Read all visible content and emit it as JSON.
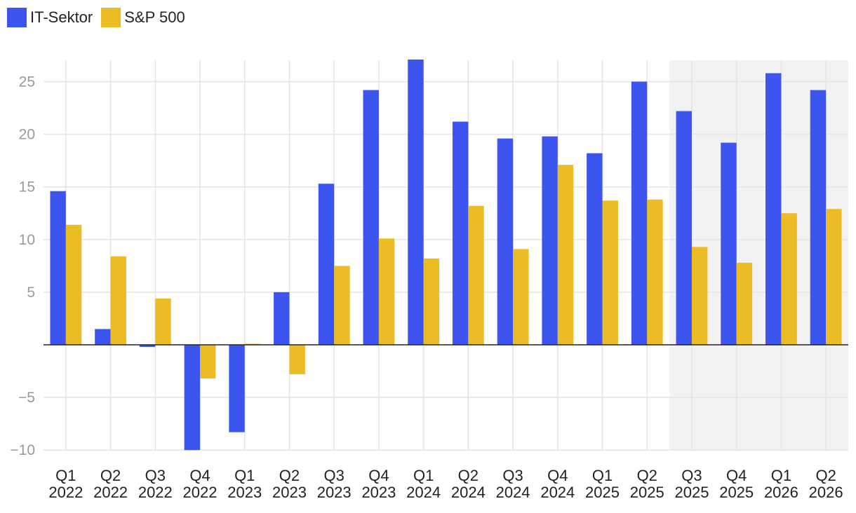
{
  "colors": {
    "it": "#3b55ee",
    "sp": "#ebbc24",
    "grid": "#e4e4e4",
    "forecast_bg": "#f2f2f2",
    "zero_line": "#222222"
  },
  "chart_data": {
    "type": "bar",
    "title": "",
    "xlabel": "",
    "ylabel": "",
    "categories": [
      [
        "Q1",
        "2022"
      ],
      [
        "Q2",
        "2022"
      ],
      [
        "Q3",
        "2022"
      ],
      [
        "Q4",
        "2022"
      ],
      [
        "Q1",
        "2023"
      ],
      [
        "Q2",
        "2023"
      ],
      [
        "Q3",
        "2023"
      ],
      [
        "Q4",
        "2023"
      ],
      [
        "Q1",
        "2024"
      ],
      [
        "Q2",
        "2024"
      ],
      [
        "Q3",
        "2024"
      ],
      [
        "Q4",
        "2024"
      ],
      [
        "Q1",
        "2025"
      ],
      [
        "Q2",
        "2025"
      ],
      [
        "Q3",
        "2025"
      ],
      [
        "Q4",
        "2025"
      ],
      [
        "Q1",
        "2026"
      ],
      [
        "Q2",
        "2026"
      ]
    ],
    "series": [
      {
        "name": "IT-Sektor",
        "color_key": "it",
        "values": [
          14.6,
          1.5,
          -0.2,
          -10.0,
          -8.3,
          5.0,
          15.3,
          24.2,
          27.1,
          21.2,
          19.6,
          19.8,
          18.2,
          25.0,
          22.2,
          19.2,
          25.8,
          24.2
        ]
      },
      {
        "name": "S&P 500",
        "color_key": "sp",
        "values": [
          11.4,
          8.4,
          4.4,
          -3.2,
          0.1,
          -2.8,
          7.5,
          10.1,
          8.2,
          13.2,
          9.1,
          17.1,
          13.7,
          13.8,
          9.3,
          7.8,
          12.5,
          12.9
        ]
      }
    ],
    "ylim": [
      -10,
      27
    ],
    "yticks": [
      -10,
      -5,
      5,
      10,
      15,
      20,
      25
    ],
    "ytick_labels": [
      "−10",
      "−5",
      "5",
      "10",
      "15",
      "20",
      "25"
    ],
    "shaded_region": {
      "from_category": "Q3 2025",
      "to_category": "Q2 2026"
    },
    "grid": true,
    "legend_position": "top-left"
  }
}
